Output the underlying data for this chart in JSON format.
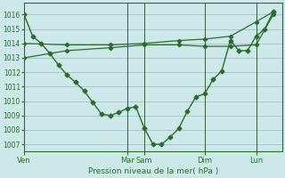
{
  "bg_color": "#cce8e8",
  "grid_color": "#99bbbb",
  "line_color": "#2d6b2d",
  "xlabel": "Pression niveau de la mer( hPa )",
  "ylim": [
    1006.5,
    1016.8
  ],
  "yticks": [
    1007,
    1008,
    1009,
    1010,
    1011,
    1012,
    1013,
    1014,
    1015,
    1016
  ],
  "day_labels": [
    "Ven",
    "Mar",
    "Sam",
    "Dim",
    "Lun"
  ],
  "day_x": [
    0,
    12,
    14,
    21,
    27
  ],
  "xlim": [
    0,
    30
  ],
  "series1_x": [
    0,
    1,
    2,
    3,
    4,
    5,
    6,
    7,
    8,
    9,
    10,
    11,
    12,
    13,
    14,
    15,
    16,
    17,
    18,
    19,
    20,
    21,
    22,
    23,
    24,
    25,
    26,
    27,
    28,
    29
  ],
  "series1_y": [
    1016.0,
    1014.5,
    1014.0,
    1013.3,
    1012.5,
    1011.8,
    1011.3,
    1010.7,
    1009.9,
    1009.1,
    1009.0,
    1009.2,
    1009.5,
    1009.6,
    1008.1,
    1007.0,
    1007.0,
    1007.5,
    1008.1,
    1009.3,
    1010.3,
    1010.5,
    1011.5,
    1012.1,
    1014.2,
    1013.5,
    1013.5,
    1014.5,
    1015.0,
    1016.2
  ],
  "series2_x": [
    0,
    5,
    10,
    14,
    18,
    21,
    24,
    27,
    29
  ],
  "series2_y": [
    1014.0,
    1013.9,
    1013.9,
    1014.0,
    1014.2,
    1014.3,
    1014.5,
    1015.5,
    1016.2
  ],
  "series3_x": [
    0,
    5,
    10,
    14,
    18,
    21,
    24,
    27,
    29
  ],
  "series3_y": [
    1013.0,
    1013.5,
    1013.7,
    1013.9,
    1013.9,
    1013.8,
    1013.8,
    1013.9,
    1016.0
  ]
}
